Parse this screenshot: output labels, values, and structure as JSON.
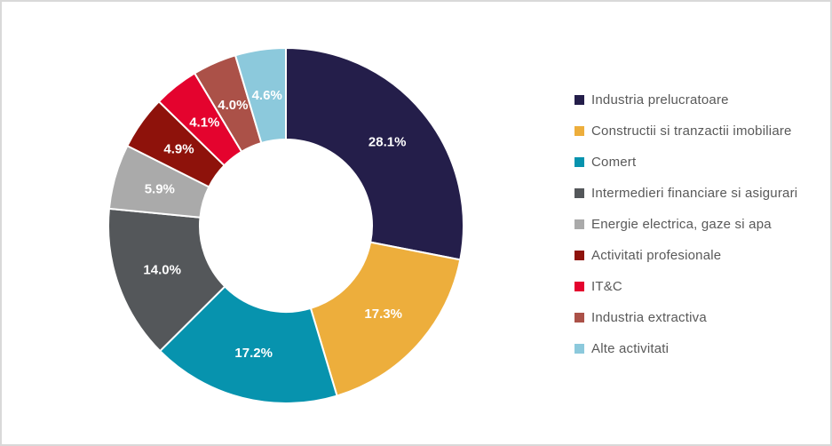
{
  "canvas": {
    "background": "#FFFFFF",
    "border_color": "#D9D9D9"
  },
  "legend": {
    "position": "right",
    "text_color": "#595959"
  },
  "chart_data": {
    "type": "pie",
    "subtype": "donut",
    "title": "",
    "unit": "%",
    "legend_position": "right",
    "start_angle_deg": 0,
    "direction": "clockwise",
    "categories": [
      "Industria prelucratoare",
      "Constructii si tranzactii imobiliare",
      "Comert",
      "Intermedieri financiare si asigurari",
      "Energie electrica, gaze si apa",
      "Activitati profesionale",
      "IT&C",
      "Industria extractiva",
      "Alte activitati"
    ],
    "values": [
      28.1,
      17.3,
      17.2,
      14.0,
      5.9,
      4.9,
      4.1,
      4.0,
      4.6
    ],
    "labels": [
      "28.1%",
      "17.3%",
      "17.2%",
      "14.0%",
      "5.9%",
      "4.9%",
      "4.1%",
      "4.0%",
      "4.6%"
    ],
    "colors": [
      "#241E4A",
      "#EDAE3C",
      "#0793AE",
      "#54575A",
      "#AAAAAA",
      "#8E120B",
      "#E4032E",
      "#AB5148",
      "#8CC9DC"
    ],
    "data_label_color": "#FFFFFF",
    "slice_border_color": "#FFFFFF"
  }
}
